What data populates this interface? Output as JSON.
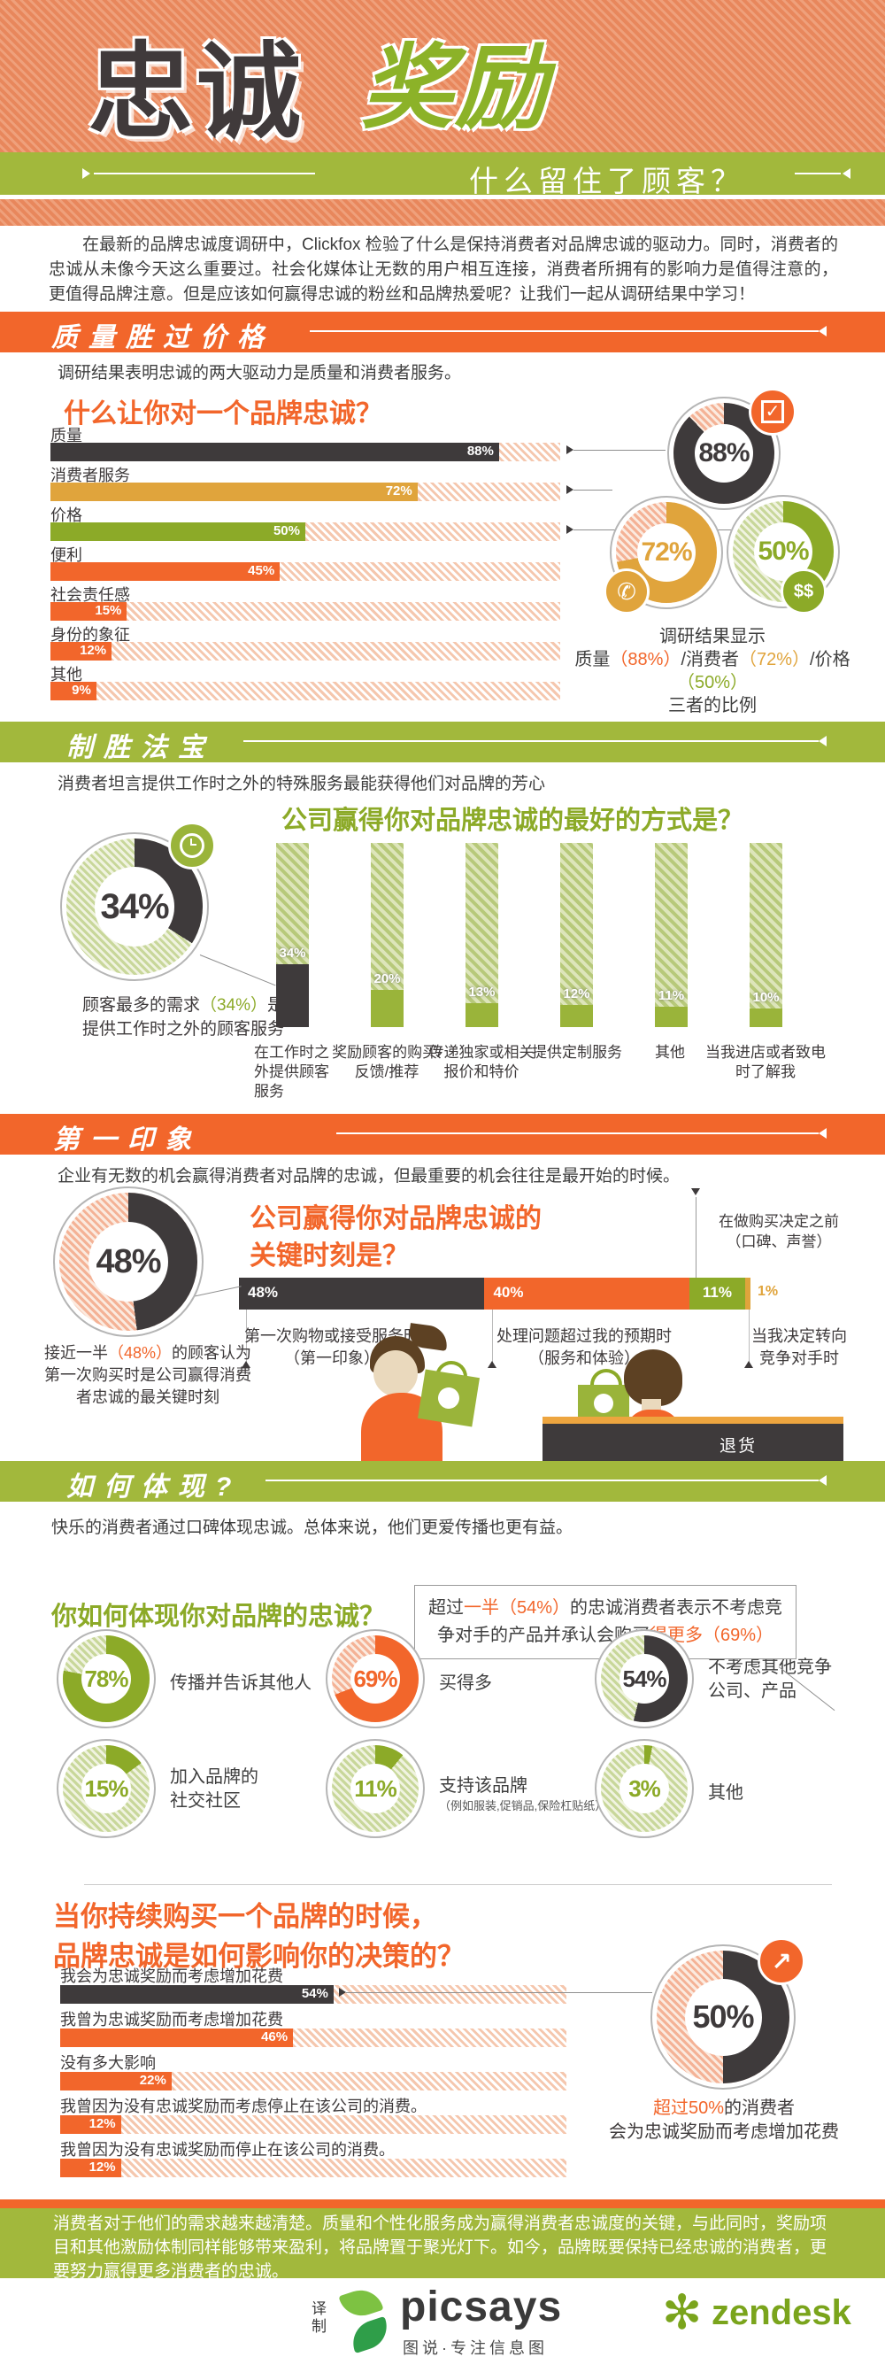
{
  "colors": {
    "orange": "#f2662b",
    "banner_green": "#a2b83c",
    "dark": "#3e3a3b",
    "gold": "#e0a43c",
    "olive_green": "#8caa28",
    "background_hatch_orange": "#e8875c"
  },
  "header": {
    "title_dark": "忠诚",
    "title_green": "奖励",
    "tagline": "什么留住了顾客？"
  },
  "intro": {
    "text": "在最新的品牌忠诚度调研中，Clickfox 检验了什么是保持消费者对品牌忠诚的驱动力。同时，消费者的忠诚从未像今天这么重要过。社会化媒体让无数的用户相互连接，消费者所拥有的影响力是值得注意的，更值得品牌注意。但是应该如何赢得忠诚的粉丝和品牌热爱呢？让我们一起从调研结果中学习！"
  },
  "s1": {
    "banner": "质量胜过价格",
    "lead": "调研结果表明忠诚的两大驱动力是质量和消费者服务。",
    "question": "什么让你对一个品牌忠诚？",
    "summary": {
      "l1": "调研结果显示",
      "p1": "质量",
      "p2": "（88%）",
      "p3": "/消费者",
      "p4": "（72%）",
      "p5": "/价格",
      "p6": "（50%）",
      "l3": "三者的比例"
    }
  },
  "s2": {
    "banner": "制胜法宝",
    "lead": "消费者坦言提供工作时之外的特殊服务最能获得他们对品牌的芳心",
    "question": "公司赢得你对品牌忠诚的最好的方式是？",
    "caption": {
      "c1": "顾客最多的需求",
      "c2": "（34%）",
      "c3": "是",
      "line2": "提供工作时之外的顾客服务"
    }
  },
  "s3": {
    "banner": "第一印象",
    "lead": "企业有无数的机会赢得消费者对品牌的忠诚，但最重要的机会往往是最开始的时候。",
    "question_l1": "公司赢得你对品牌忠诚的",
    "question_l2": "关键时刻是？",
    "annotation_l1": "在做购买决定之前",
    "annotation_l2": "（口碑、声誉）",
    "bl1a": "第一次购物或接受服务时",
    "bl1b": "（第一印象）",
    "bl2a": "处理问题超过我的预期时",
    "bl2b": "（服务和体验）",
    "bl3a": "当我决定转向",
    "bl3b": "竞争对手时",
    "caption": {
      "c1": "接近一半",
      "c2": "（48%）",
      "c3": "的顾客认为第一次购买时是公司赢得消费者忠诚的最关键时刻"
    },
    "counter_sign": "退货"
  },
  "s4": {
    "banner": "如何体现?",
    "lead": "快乐的消费者通过口碑体现忠诚。总体来说，他们更爱传播也更有益。",
    "question": "你如何体现你对品牌的忠诚？",
    "callout": {
      "c1": "超过",
      "c2": "一半（54%）",
      "c3": "的忠诚消费者表示不考虑竞争对手的产品并承认会购买",
      "c4": "得更多（69%）"
    },
    "note11": "（例如服装,促销品,保险杠贴纸）"
  },
  "s5": {
    "question_l1": "当你持续购买一个品牌的时候，",
    "question_l2": "品牌忠诚是如何影响你的决策的？",
    "caption": {
      "c1": "超过50%",
      "c2": "的消费者",
      "line2": "会为忠诚奖励而考虑增加花费"
    }
  },
  "footer": {
    "text": "消费者对于他们的需求越来越清楚。质量和个性化服务成为赢得消费者忠诚度的关键，与此同时，奖励项目和其他激励体制同样能够带来盈利，将品牌置于聚光灯下。如今，品牌既要保持已经忠诚的消费者，更要努力赢得更多消费者的忠诚。",
    "credit": "译制",
    "brand1": "picsays",
    "brand1_tagline": "图说·专注信息图",
    "brand2": "zendesk"
  },
  "chart_data": [
    {
      "id": "loyalty_drivers",
      "type": "bar",
      "orientation": "horizontal",
      "unit": "%",
      "xlim": [
        0,
        100
      ],
      "title": "什么让你对一个品牌忠诚？",
      "items": [
        {
          "label": "质量",
          "value": 88,
          "pct": "88%",
          "color": "#3e3a3b"
        },
        {
          "label": "消费者服务",
          "value": 72,
          "pct": "72%",
          "color": "#e0a43c"
        },
        {
          "label": "价格",
          "value": 50,
          "pct": "50%",
          "color": "#8caa28"
        },
        {
          "label": "便利",
          "value": 45,
          "pct": "45%",
          "color": "#f2662b"
        },
        {
          "label": "社会责任感",
          "value": 15,
          "pct": "15%",
          "color": "#f2662b"
        },
        {
          "label": "身份的象征",
          "value": 12,
          "pct": "12%",
          "color": "#f2662b"
        },
        {
          "label": "其他",
          "value": 9,
          "pct": "9%",
          "color": "#f2662b"
        }
      ]
    },
    {
      "id": "drivers_top3_donuts",
      "type": "pie",
      "title": "调研结果显示 质量（88%）/消费者（72%）/价格（50%）三者的比例",
      "items": [
        {
          "label": "质量",
          "value": 88,
          "pct": "88%",
          "color": "#3e3a3b"
        },
        {
          "label": "消费者",
          "value": 72,
          "pct": "72%",
          "color": "#e0a43c"
        },
        {
          "label": "价格",
          "value": 50,
          "pct": "50%",
          "color": "#8caa28"
        }
      ]
    },
    {
      "id": "best_way_columns",
      "type": "bar",
      "orientation": "vertical",
      "unit": "%",
      "ylim": [
        0,
        100
      ],
      "title": "公司赢得你对品牌忠诚的最好的方式是？",
      "items": [
        {
          "label": "在工作时之外提供顾客服务",
          "value": 34,
          "pct": "34%",
          "color": "#3e3a3b"
        },
        {
          "label": "奖励顾客的购买/反馈/推荐",
          "value": 20,
          "pct": "20%",
          "color": "#9ab43a"
        },
        {
          "label": "传递独家或相关报价和特价",
          "value": 13,
          "pct": "13%",
          "color": "#9ab43a"
        },
        {
          "label": "提供定制服务",
          "value": 12,
          "pct": "12%",
          "color": "#9ab43a"
        },
        {
          "label": "其他",
          "value": 11,
          "pct": "11%",
          "color": "#9ab43a"
        },
        {
          "label": "当我进店或者致电时了解我",
          "value": 10,
          "pct": "10%",
          "color": "#9ab43a"
        }
      ]
    },
    {
      "id": "best_way_donut",
      "type": "pie",
      "items": [
        {
          "label": "顾客最多的需求（34%）是提供工作时之外的顾客服务",
          "value": 34,
          "pct": "34%",
          "color": "#3e3a3b"
        }
      ]
    },
    {
      "id": "key_moment_stacked",
      "type": "bar",
      "stacked": true,
      "unit": "%",
      "title": "公司赢得你对品牌忠诚的关键时刻是？",
      "items": [
        {
          "label": "第一次购物或接受服务时（第一印象）",
          "value": 48,
          "pct": "48%",
          "color": "#3e3a3b"
        },
        {
          "label": "处理问题超过我的预期时（服务和体验）",
          "value": 40,
          "pct": "40%",
          "color": "#f2662b"
        },
        {
          "label": "在做购买决定之前（口碑、声誉）",
          "value": 11,
          "pct": "11%",
          "color": "#8caa28"
        },
        {
          "label": "当我决定转向竞争对手时",
          "value": 1,
          "pct": "1%",
          "color": "#e0a43c"
        }
      ]
    },
    {
      "id": "key_moment_donut",
      "type": "pie",
      "items": [
        {
          "label": "接近一半（48%）的顾客认为第一次购买时是公司赢得消费者忠诚的最关键时刻",
          "value": 48,
          "pct": "48%",
          "color": "#3e3a3b"
        }
      ]
    },
    {
      "id": "show_loyalty_donuts",
      "type": "pie",
      "title": "你如何体现你对品牌的忠诚？",
      "items": [
        {
          "label": "传播并告诉其他人",
          "value": 78,
          "pct": "78%",
          "color": "#8caa28"
        },
        {
          "label": "买得多",
          "value": 69,
          "pct": "69%",
          "color": "#f2662b"
        },
        {
          "label": "不考虑其他竞争公司、产品",
          "value": 54,
          "pct": "54%",
          "color": "#3e3a3b"
        },
        {
          "label": "加入品牌的社交社区",
          "value": 15,
          "pct": "15%",
          "color": "#8caa28"
        },
        {
          "label": "支持该品牌（例如服装,促销品,保险杠贴纸）",
          "value": 11,
          "pct": "11%",
          "color": "#8caa28"
        },
        {
          "label": "其他",
          "value": 3,
          "pct": "3%",
          "color": "#8caa28"
        }
      ]
    },
    {
      "id": "decision_impact",
      "type": "bar",
      "orientation": "horizontal",
      "unit": "%",
      "xlim": [
        0,
        100
      ],
      "title": "当你持续购买一个品牌的时候，品牌忠诚是如何影响你的决策的？",
      "items": [
        {
          "label": "我会为忠诚奖励而考虑增加花费",
          "value": 54,
          "pct": "54%",
          "color": "#3e3a3b"
        },
        {
          "label": "我曾为忠诚奖励而考虑增加花费",
          "value": 46,
          "pct": "46%",
          "color": "#f2662b"
        },
        {
          "label": "没有多大影响",
          "value": 22,
          "pct": "22%",
          "color": "#f2662b"
        },
        {
          "label": "我曾因为没有忠诚奖励而考虑停止在该公司的消费。",
          "value": 12,
          "pct": "12%",
          "color": "#f2662b"
        },
        {
          "label": "我曾因为没有忠诚奖励而停止在该公司的消费。",
          "value": 12,
          "pct": "12%",
          "color": "#f2662b"
        }
      ]
    },
    {
      "id": "spend_more_donut",
      "type": "pie",
      "items": [
        {
          "label": "超过50%的消费者会为忠诚奖励而考虑增加花费",
          "value": 50,
          "pct": "50%",
          "color": "#3e3a3b"
        }
      ]
    }
  ]
}
